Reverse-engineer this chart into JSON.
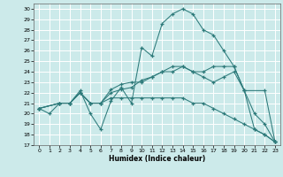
{
  "xlabel": "Humidex (Indice chaleur)",
  "background_color": "#cceaea",
  "grid_color": "#ffffff",
  "line_color": "#2d7a7a",
  "xlim": [
    -0.5,
    23.5
  ],
  "ylim": [
    17,
    30.5
  ],
  "yticks": [
    17,
    18,
    19,
    20,
    21,
    22,
    23,
    24,
    25,
    26,
    27,
    28,
    29,
    30
  ],
  "xticks": [
    0,
    1,
    2,
    3,
    4,
    5,
    6,
    7,
    8,
    9,
    10,
    11,
    12,
    13,
    14,
    15,
    16,
    17,
    18,
    19,
    20,
    21,
    22,
    23
  ],
  "line1_x": [
    0,
    1,
    2,
    3,
    4,
    5,
    6,
    7,
    8,
    9,
    10,
    11,
    12,
    13,
    14,
    15,
    16,
    17,
    18,
    19,
    20,
    21,
    22,
    23
  ],
  "line1_y": [
    20.5,
    20.0,
    21.0,
    21.0,
    22.2,
    20.0,
    18.5,
    21.2,
    22.5,
    21.0,
    26.3,
    25.5,
    28.6,
    29.5,
    30.0,
    29.5,
    28.0,
    27.5,
    26.0,
    24.5,
    22.2,
    18.5,
    18.0,
    17.3
  ],
  "line2_x": [
    0,
    2,
    3,
    4,
    5,
    6,
    7,
    8,
    9,
    10,
    11,
    12,
    13,
    14,
    15,
    16,
    17,
    18,
    19,
    20,
    22,
    23
  ],
  "line2_y": [
    20.5,
    21.0,
    21.0,
    22.0,
    21.0,
    21.0,
    22.0,
    22.3,
    22.5,
    23.2,
    23.5,
    24.0,
    24.5,
    24.5,
    24.0,
    23.5,
    23.0,
    23.5,
    24.0,
    22.2,
    22.2,
    17.3
  ],
  "line3_x": [
    0,
    2,
    3,
    4,
    5,
    6,
    7,
    8,
    9,
    10,
    11,
    12,
    13,
    14,
    15,
    16,
    17,
    18,
    19,
    20,
    21,
    22,
    23
  ],
  "line3_y": [
    20.5,
    21.0,
    21.0,
    22.0,
    21.0,
    21.0,
    22.3,
    22.8,
    23.0,
    23.0,
    23.5,
    24.0,
    24.0,
    24.5,
    24.0,
    24.0,
    24.5,
    24.5,
    24.5,
    22.2,
    20.0,
    19.0,
    17.3
  ],
  "line4_x": [
    0,
    2,
    3,
    4,
    5,
    6,
    7,
    8,
    9,
    10,
    11,
    12,
    13,
    14,
    15,
    16,
    17,
    18,
    19,
    20,
    21,
    22,
    23
  ],
  "line4_y": [
    20.5,
    21.0,
    21.0,
    22.0,
    21.0,
    21.0,
    21.5,
    21.5,
    21.5,
    21.5,
    21.5,
    21.5,
    21.5,
    21.5,
    21.0,
    21.0,
    20.5,
    20.0,
    19.5,
    19.0,
    18.5,
    18.0,
    17.3
  ]
}
